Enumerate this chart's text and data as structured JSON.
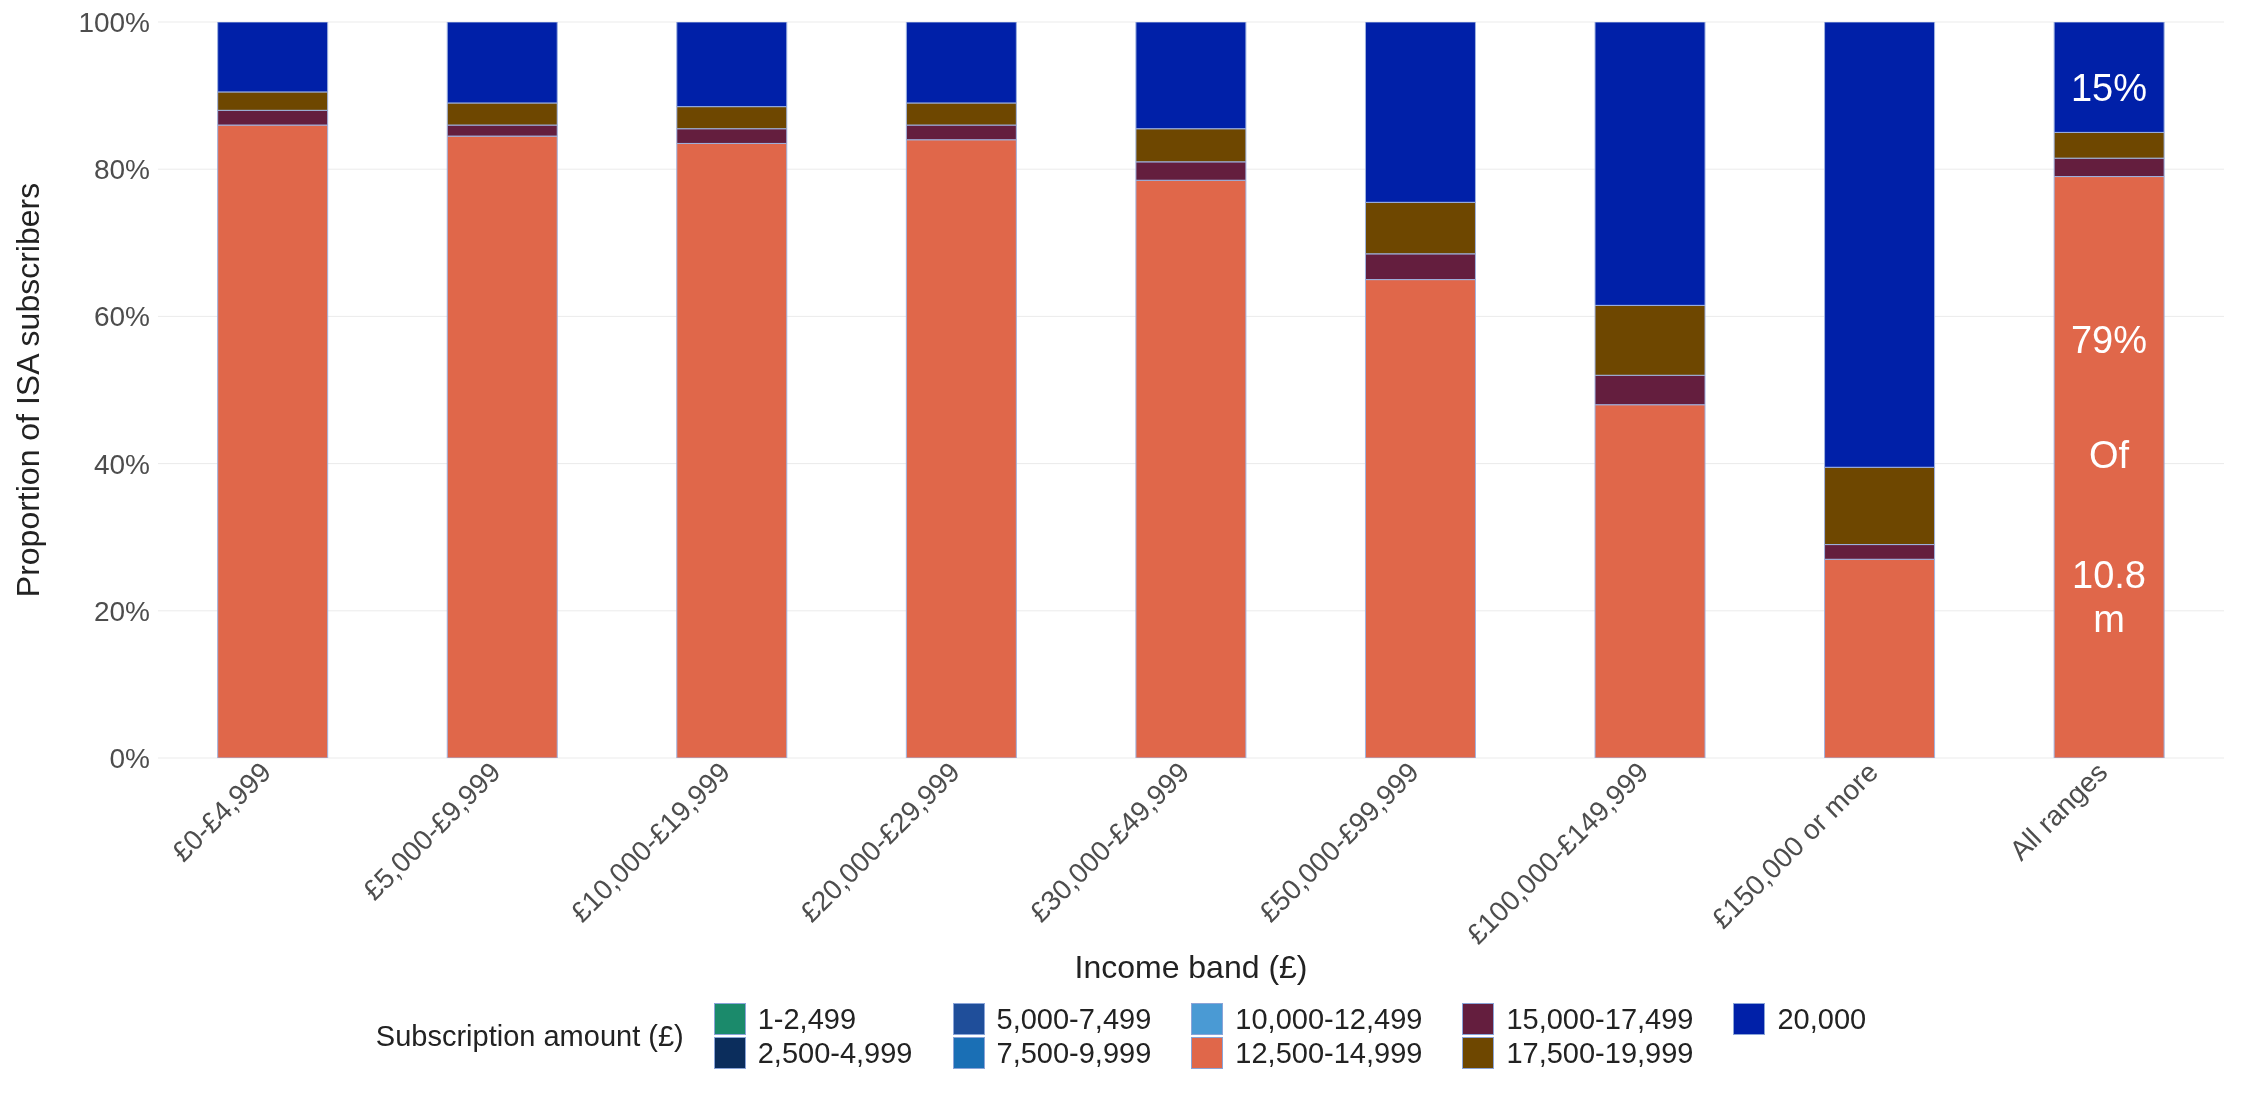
{
  "chart_data": {
    "type": "bar",
    "stacked": true,
    "xlabel": "Income band (£)",
    "ylabel": "Proportion of ISA subscribers",
    "legend_title": "Subscription amount (£)",
    "legend": "bottom",
    "grid": "y",
    "categories": [
      "£0-£4,999",
      "£5,000-£9,999",
      "£10,000-£19,999",
      "£20,000-£29,999",
      "£30,000-£49,999",
      "£50,000-£99,999",
      "£100,000-£149,999",
      "£150,000 or more",
      "All ranges"
    ],
    "ylim": [
      0,
      100
    ],
    "yticks": [
      {
        "value": 0,
        "label": "0%"
      },
      {
        "value": 20,
        "label": "20%"
      },
      {
        "value": 40,
        "label": "40%"
      },
      {
        "value": 60,
        "label": "60%"
      },
      {
        "value": 80,
        "label": "80%"
      },
      {
        "value": 100,
        "label": "100%"
      }
    ],
    "series": [
      {
        "name": "1-2,499",
        "color": "#1b8a6b",
        "values": [
          0,
          0,
          0,
          0,
          0,
          0,
          0,
          0,
          0
        ]
      },
      {
        "name": "2,500-4,999",
        "color": "#0b2d5c",
        "values": [
          0,
          0,
          0,
          0,
          0,
          0,
          0,
          0,
          0
        ]
      },
      {
        "name": "5,000-7,499",
        "color": "#1f4e9a",
        "values": [
          0,
          0,
          0,
          0,
          0,
          0,
          0,
          0,
          0
        ]
      },
      {
        "name": "7,500-9,999",
        "color": "#1a6fb5",
        "values": [
          0,
          0,
          0,
          0,
          0,
          0,
          0,
          0,
          0
        ]
      },
      {
        "name": "10,000-12,499",
        "color": "#4a9ad4",
        "values": [
          0,
          0,
          0,
          0,
          0,
          0,
          0,
          0,
          0
        ]
      },
      {
        "name": "12,500-14,999",
        "color": "#e0674a",
        "values": [
          86,
          84.5,
          83.5,
          84,
          78.5,
          65,
          48,
          27,
          79
        ]
      },
      {
        "name": "15,000-17,499",
        "color": "#641e3e",
        "values": [
          2,
          1.5,
          2,
          2,
          2.5,
          3.5,
          4,
          2,
          2.5
        ]
      },
      {
        "name": "17,500-19,999",
        "color": "#6e4700",
        "values": [
          2.5,
          3,
          3,
          3,
          4.5,
          7,
          9.5,
          10.5,
          3.5
        ]
      },
      {
        "name": "20,000",
        "color": "#0020a8",
        "values": [
          9.5,
          11,
          11.5,
          11,
          14.5,
          24.5,
          38.5,
          60.5,
          15
        ]
      }
    ],
    "annotations": [
      "15%",
      "79%",
      "Of",
      "10.8 m"
    ]
  }
}
